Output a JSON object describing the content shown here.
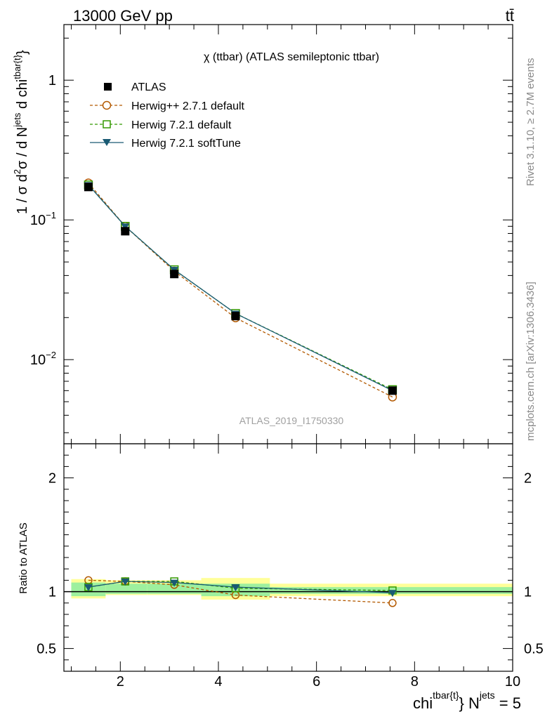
{
  "header": {
    "energy_label": "13000 GeV pp",
    "process_label": "tt̄"
  },
  "side": {
    "rivet_label": "Rivet 3.1.10, ≥ 2.7M events",
    "site_label": "mcplots.cern.ch [arXiv:1306.3436]"
  },
  "chart_data": [
    {
      "type": "line",
      "panel": "main",
      "title": "χ (ttbar) (ATLAS semileptonic ttbar)",
      "watermark": "ATLAS_2019_I1750330",
      "ylabel_parts": {
        "a": "1 / σ d",
        "b": "2",
        "c": "σ / d N",
        "d": "jets",
        "e": " d chi",
        "f": "tbar{t}"
      },
      "yscale": "log",
      "ylim": [
        0.0025,
        2.5
      ],
      "xlim": [
        0.85,
        10
      ],
      "y_ticks": [
        {
          "v": 1,
          "m": "1",
          "e": ""
        },
        {
          "v": 0.1,
          "m": "10",
          "e": "−1"
        },
        {
          "v": 0.01,
          "m": "10",
          "e": "−2"
        }
      ],
      "legend_position": "top-left",
      "series": [
        {
          "name": "ATLAS",
          "color": "#000000",
          "style": "data",
          "x": [
            1.35,
            2.1,
            3.1,
            4.35,
            7.55
          ],
          "y": [
            0.172,
            0.083,
            0.041,
            0.0205,
            0.006
          ]
        },
        {
          "name": "Herwig++ 2.7.1 default",
          "color": "#b35900",
          "style": "dashed-circle",
          "x": [
            1.35,
            2.1,
            3.1,
            4.35,
            7.55
          ],
          "y": [
            0.184,
            0.09,
            0.043,
            0.0199,
            0.0054
          ]
        },
        {
          "name": "Herwig 7.2.1 default",
          "color": "#339900",
          "style": "dashed-square",
          "x": [
            1.35,
            2.1,
            3.1,
            4.35,
            7.55
          ],
          "y": [
            0.178,
            0.09,
            0.044,
            0.0214,
            0.0061
          ]
        },
        {
          "name": "Herwig 7.2.1 softTune",
          "color": "#1a5a73",
          "style": "solid-triangle",
          "x": [
            1.35,
            2.1,
            3.1,
            4.35,
            7.55
          ],
          "y": [
            0.178,
            0.09,
            0.044,
            0.0214,
            0.006
          ]
        }
      ]
    },
    {
      "type": "line",
      "panel": "ratio",
      "ylabel": "Ratio to ATLAS",
      "xlabel_parts": {
        "a": "chi",
        "b": "tbar{t}",
        "c": "} N",
        "d": "jets",
        "e": " = 5"
      },
      "yscale": "linear",
      "ylim": [
        0.3,
        2.3
      ],
      "xlim": [
        0.85,
        10
      ],
      "x_ticks": [
        2,
        4,
        6,
        8,
        10
      ],
      "y_ticks": [
        0.5,
        1,
        2
      ],
      "y_tick_labels": [
        "0.5",
        "1",
        "2"
      ],
      "x_tick_labels": [
        "2",
        "4",
        "6",
        "8",
        "10"
      ],
      "bands": [
        {
          "x0": 1.0,
          "x1": 1.7,
          "yellow": [
            0.94,
            1.11
          ],
          "green": [
            0.96,
            1.08
          ]
        },
        {
          "x0": 1.7,
          "x1": 2.55,
          "yellow": [
            0.97,
            1.1
          ],
          "green": [
            0.98,
            1.07
          ]
        },
        {
          "x0": 2.55,
          "x1": 3.65,
          "yellow": [
            0.97,
            1.1
          ],
          "green": [
            0.98,
            1.07
          ]
        },
        {
          "x0": 3.65,
          "x1": 5.05,
          "yellow": [
            0.93,
            1.12
          ],
          "green": [
            0.96,
            1.07
          ]
        },
        {
          "x0": 5.05,
          "x1": 10.0,
          "yellow": [
            0.96,
            1.07
          ],
          "green": [
            0.98,
            1.04
          ]
        }
      ],
      "series": [
        {
          "name": "Herwig++ 2.7.1 default",
          "color": "#b35900",
          "style": "dashed-circle",
          "x": [
            1.35,
            2.1,
            3.1,
            4.35,
            7.55
          ],
          "y": [
            1.1,
            1.09,
            1.06,
            0.97,
            0.9
          ]
        },
        {
          "name": "Herwig 7.2.1 default",
          "color": "#339900",
          "style": "dashed-square",
          "x": [
            1.35,
            2.1,
            3.1,
            4.35,
            7.55
          ],
          "y": [
            1.04,
            1.09,
            1.09,
            1.03,
            1.01
          ]
        },
        {
          "name": "Herwig 7.2.1 softTune",
          "color": "#1a5a73",
          "style": "solid-triangle",
          "x": [
            1.35,
            2.1,
            3.1,
            4.35,
            7.55
          ],
          "y": [
            1.04,
            1.09,
            1.08,
            1.04,
            0.99
          ]
        }
      ]
    }
  ]
}
